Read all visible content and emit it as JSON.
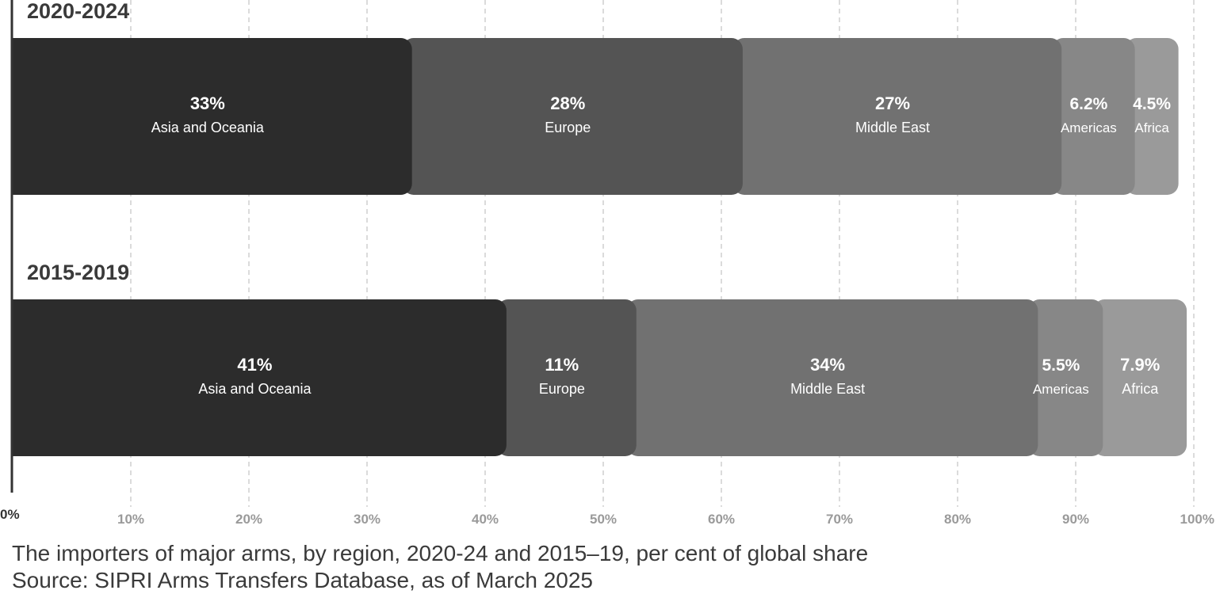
{
  "chart_data": {
    "type": "bar",
    "stacked": true,
    "orientation": "horizontal",
    "xlim": [
      0,
      100
    ],
    "x_ticks": [
      "0%",
      "10%",
      "20%",
      "30%",
      "40%",
      "50%",
      "60%",
      "70%",
      "80%",
      "90%",
      "100%"
    ],
    "grid": true,
    "colors": [
      "#2c2c2c",
      "#545454",
      "#717171",
      "#878787",
      "#9a9a9a"
    ],
    "groups": [
      {
        "title": "2020-2024",
        "segments": [
          {
            "label": "Asia and Oceania",
            "value": 33,
            "value_label": "33%"
          },
          {
            "label": "Europe",
            "value": 28,
            "value_label": "28%"
          },
          {
            "label": "Middle East",
            "value": 27,
            "value_label": "27%"
          },
          {
            "label": "Americas",
            "value": 6.2,
            "value_label": "6.2%"
          },
          {
            "label": "Africa",
            "value": 4.5,
            "value_label": "4.5%"
          }
        ]
      },
      {
        "title": "2015-2019",
        "segments": [
          {
            "label": "Asia and Oceania",
            "value": 41,
            "value_label": "41%"
          },
          {
            "label": "Europe",
            "value": 11,
            "value_label": "11%"
          },
          {
            "label": "Middle East",
            "value": 34,
            "value_label": "34%"
          },
          {
            "label": "Americas",
            "value": 5.5,
            "value_label": "5.5%"
          },
          {
            "label": "Africa",
            "value": 7.9,
            "value_label": "7.9%"
          }
        ]
      }
    ]
  },
  "caption": "The importers of major arms, by region, 2020-24 and 2015–19, per cent of global share",
  "source": "Source: SIPRI Arms Transfers Database, as of March 2025"
}
